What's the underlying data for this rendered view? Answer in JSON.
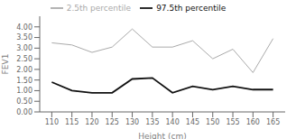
{
  "chart_data": {
    "type": "line",
    "xlabel": "Height (cm)",
    "ylabel": "FEV1",
    "x": [
      110,
      115,
      120,
      125,
      130,
      135,
      140,
      145,
      150,
      155,
      160,
      165
    ],
    "series": [
      {
        "name": "2.5th percentile",
        "color": "#aaaaaa",
        "values": [
          3.25,
          3.15,
          2.8,
          3.05,
          3.9,
          3.05,
          3.05,
          3.35,
          2.5,
          2.95,
          1.85,
          3.45
        ]
      },
      {
        "name": "97.5th percentile",
        "color": "#111111",
        "values": [
          1.4,
          1.0,
          0.9,
          0.9,
          1.55,
          1.6,
          0.9,
          1.2,
          1.05,
          1.2,
          1.05,
          1.05
        ]
      }
    ],
    "xlim": [
      107,
      168
    ],
    "xticks": [
      110,
      115,
      120,
      125,
      130,
      135,
      140,
      145,
      150,
      155,
      160,
      165
    ],
    "ylim": [
      0.0,
      4.5
    ],
    "yticks": [
      {
        "value": 0.0,
        "label": "0.00"
      },
      {
        "value": 0.5,
        "label": "0.50"
      },
      {
        "value": 1.0,
        "label": "1.00"
      },
      {
        "value": 1.5,
        "label": "1.50"
      },
      {
        "value": 2.0,
        "label": "2.00"
      },
      {
        "value": 2.5,
        "label": "2.50"
      },
      {
        "value": 3.0,
        "label": "3.00"
      },
      {
        "value": 3.5,
        "label": "3.50"
      },
      {
        "value": 4.0,
        "label": "4.00"
      }
    ],
    "grid": false,
    "legend": "top"
  }
}
